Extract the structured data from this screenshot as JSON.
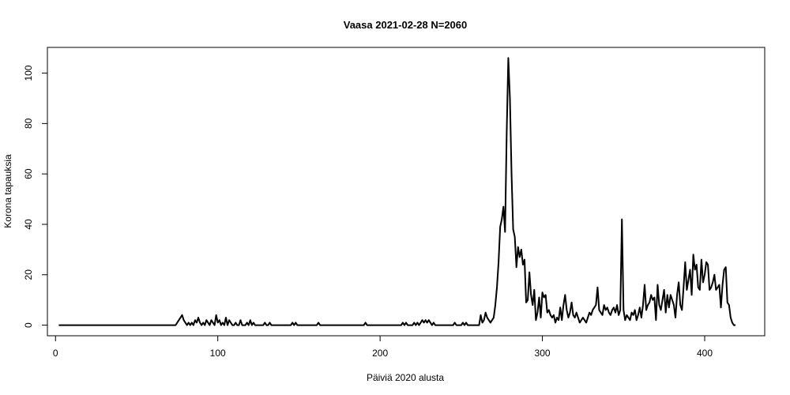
{
  "chart_data": {
    "type": "line",
    "title": "Vaasa 2021-02-28 N=2060",
    "xlabel": "Päiviä 2020 alusta",
    "ylabel": "Korona tapauksia",
    "xlim": [
      -5,
      437
    ],
    "ylim": [
      -4.2,
      110.2
    ],
    "x_ticks": [
      0,
      100,
      200,
      300,
      400
    ],
    "y_ticks": [
      0,
      20,
      40,
      60,
      80,
      100
    ],
    "grid": false,
    "legend": "none",
    "line_color": "#000000",
    "series": [
      {
        "points": [
          [
            2,
            0
          ],
          [
            10,
            0
          ],
          [
            20,
            0
          ],
          [
            30,
            0
          ],
          [
            40,
            0
          ],
          [
            50,
            0
          ],
          [
            60,
            0
          ],
          [
            70,
            0
          ],
          [
            74,
            0
          ],
          [
            75,
            1
          ],
          [
            76,
            2
          ],
          [
            77,
            3
          ],
          [
            78,
            4
          ],
          [
            79,
            2
          ],
          [
            80,
            1
          ],
          [
            81,
            0
          ],
          [
            82,
            1
          ],
          [
            83,
            0
          ],
          [
            84,
            1
          ],
          [
            85,
            0
          ],
          [
            86,
            2
          ],
          [
            87,
            1
          ],
          [
            88,
            3
          ],
          [
            89,
            1
          ],
          [
            90,
            0
          ],
          [
            91,
            1
          ],
          [
            92,
            0
          ],
          [
            93,
            2
          ],
          [
            94,
            1
          ],
          [
            95,
            0
          ],
          [
            96,
            2
          ],
          [
            97,
            1
          ],
          [
            98,
            0
          ],
          [
            99,
            4
          ],
          [
            100,
            1
          ],
          [
            101,
            2
          ],
          [
            102,
            0
          ],
          [
            103,
            1
          ],
          [
            104,
            0
          ],
          [
            105,
            3
          ],
          [
            106,
            0
          ],
          [
            107,
            2
          ],
          [
            108,
            1
          ],
          [
            109,
            0
          ],
          [
            110,
            0
          ],
          [
            111,
            1
          ],
          [
            112,
            0
          ],
          [
            113,
            0
          ],
          [
            114,
            2
          ],
          [
            115,
            0
          ],
          [
            116,
            0
          ],
          [
            117,
            0
          ],
          [
            118,
            1
          ],
          [
            119,
            0
          ],
          [
            120,
            2
          ],
          [
            121,
            0
          ],
          [
            122,
            1
          ],
          [
            123,
            0
          ],
          [
            124,
            0
          ],
          [
            128,
            0
          ],
          [
            129,
            1
          ],
          [
            130,
            0
          ],
          [
            131,
            0
          ],
          [
            132,
            1
          ],
          [
            133,
            0
          ],
          [
            135,
            0
          ],
          [
            145,
            0
          ],
          [
            146,
            1
          ],
          [
            147,
            0
          ],
          [
            148,
            1
          ],
          [
            149,
            0
          ],
          [
            155,
            0
          ],
          [
            161,
            0
          ],
          [
            162,
            1
          ],
          [
            163,
            0
          ],
          [
            170,
            0
          ],
          [
            180,
            0
          ],
          [
            190,
            0
          ],
          [
            191,
            1
          ],
          [
            192,
            0
          ],
          [
            200,
            0
          ],
          [
            210,
            0
          ],
          [
            213,
            0
          ],
          [
            214,
            1
          ],
          [
            215,
            0
          ],
          [
            216,
            1
          ],
          [
            217,
            0
          ],
          [
            220,
            0
          ],
          [
            221,
            1
          ],
          [
            222,
            0
          ],
          [
            223,
            1
          ],
          [
            224,
            0
          ],
          [
            225,
            1
          ],
          [
            226,
            2
          ],
          [
            227,
            1
          ],
          [
            228,
            2
          ],
          [
            229,
            1
          ],
          [
            230,
            2
          ],
          [
            231,
            1
          ],
          [
            232,
            0
          ],
          [
            233,
            1
          ],
          [
            234,
            0
          ],
          [
            240,
            0
          ],
          [
            245,
            0
          ],
          [
            246,
            1
          ],
          [
            247,
            0
          ],
          [
            250,
            0
          ],
          [
            251,
            1
          ],
          [
            252,
            0
          ],
          [
            253,
            1
          ],
          [
            254,
            0
          ],
          [
            260,
            0
          ],
          [
            261,
            0
          ],
          [
            262,
            4
          ],
          [
            263,
            1
          ],
          [
            264,
            2
          ],
          [
            265,
            5
          ],
          [
            266,
            3
          ],
          [
            267,
            2
          ],
          [
            268,
            1
          ],
          [
            269,
            2
          ],
          [
            270,
            3
          ],
          [
            271,
            8
          ],
          [
            272,
            15
          ],
          [
            273,
            25
          ],
          [
            274,
            39
          ],
          [
            275,
            42
          ],
          [
            276,
            47
          ],
          [
            277,
            37
          ],
          [
            278,
            76
          ],
          [
            279,
            106
          ],
          [
            280,
            90
          ],
          [
            281,
            60
          ],
          [
            282,
            38
          ],
          [
            283,
            35
          ],
          [
            284,
            23
          ],
          [
            285,
            31
          ],
          [
            286,
            27
          ],
          [
            287,
            30
          ],
          [
            288,
            24
          ],
          [
            289,
            26
          ],
          [
            290,
            9
          ],
          [
            291,
            10
          ],
          [
            292,
            21
          ],
          [
            293,
            12
          ],
          [
            294,
            8
          ],
          [
            295,
            14
          ],
          [
            296,
            2
          ],
          [
            297,
            5
          ],
          [
            298,
            11
          ],
          [
            299,
            3
          ],
          [
            300,
            13
          ],
          [
            301,
            11
          ],
          [
            302,
            12
          ],
          [
            303,
            5
          ],
          [
            304,
            6
          ],
          [
            305,
            4
          ],
          [
            306,
            3
          ],
          [
            307,
            4
          ],
          [
            308,
            1
          ],
          [
            309,
            3
          ],
          [
            310,
            2
          ],
          [
            311,
            7
          ],
          [
            312,
            2
          ],
          [
            313,
            8
          ],
          [
            314,
            12
          ],
          [
            315,
            6
          ],
          [
            316,
            3
          ],
          [
            317,
            5
          ],
          [
            318,
            9
          ],
          [
            319,
            4
          ],
          [
            320,
            3
          ],
          [
            321,
            5
          ],
          [
            322,
            3
          ],
          [
            323,
            1
          ],
          [
            324,
            2
          ],
          [
            325,
            3
          ],
          [
            326,
            2
          ],
          [
            327,
            1
          ],
          [
            328,
            3
          ],
          [
            329,
            5
          ],
          [
            330,
            4
          ],
          [
            331,
            6
          ],
          [
            332,
            7
          ],
          [
            333,
            8
          ],
          [
            334,
            15
          ],
          [
            335,
            6
          ],
          [
            336,
            5
          ],
          [
            337,
            4
          ],
          [
            338,
            8
          ],
          [
            339,
            6
          ],
          [
            340,
            7
          ],
          [
            341,
            5
          ],
          [
            342,
            4
          ],
          [
            343,
            6
          ],
          [
            344,
            7
          ],
          [
            345,
            5
          ],
          [
            346,
            8
          ],
          [
            347,
            4
          ],
          [
            348,
            6
          ],
          [
            349,
            42
          ],
          [
            350,
            6
          ],
          [
            351,
            2
          ],
          [
            352,
            4
          ],
          [
            353,
            3
          ],
          [
            354,
            2
          ],
          [
            355,
            5
          ],
          [
            356,
            4
          ],
          [
            357,
            6
          ],
          [
            358,
            2
          ],
          [
            359,
            4
          ],
          [
            360,
            7
          ],
          [
            361,
            3
          ],
          [
            362,
            8
          ],
          [
            363,
            16
          ],
          [
            364,
            6
          ],
          [
            365,
            8
          ],
          [
            366,
            9
          ],
          [
            367,
            12
          ],
          [
            368,
            10
          ],
          [
            369,
            11
          ],
          [
            370,
            2
          ],
          [
            371,
            16
          ],
          [
            372,
            8
          ],
          [
            373,
            6
          ],
          [
            374,
            10
          ],
          [
            375,
            14
          ],
          [
            376,
            5
          ],
          [
            377,
            12
          ],
          [
            378,
            7
          ],
          [
            379,
            12
          ],
          [
            380,
            10
          ],
          [
            381,
            8
          ],
          [
            382,
            3
          ],
          [
            383,
            12
          ],
          [
            384,
            17
          ],
          [
            385,
            8
          ],
          [
            386,
            6
          ],
          [
            387,
            15
          ],
          [
            388,
            25
          ],
          [
            389,
            14
          ],
          [
            390,
            18
          ],
          [
            391,
            22
          ],
          [
            392,
            12
          ],
          [
            393,
            28
          ],
          [
            394,
            22
          ],
          [
            395,
            24
          ],
          [
            396,
            15
          ],
          [
            397,
            14
          ],
          [
            398,
            26
          ],
          [
            399,
            17
          ],
          [
            400,
            20
          ],
          [
            401,
            25
          ],
          [
            402,
            24
          ],
          [
            403,
            14
          ],
          [
            404,
            15
          ],
          [
            405,
            17
          ],
          [
            406,
            20
          ],
          [
            407,
            14
          ],
          [
            408,
            15
          ],
          [
            409,
            16
          ],
          [
            410,
            7
          ],
          [
            411,
            16
          ],
          [
            412,
            22
          ],
          [
            413,
            23
          ],
          [
            414,
            9
          ],
          [
            415,
            8
          ],
          [
            416,
            3
          ],
          [
            417,
            1
          ],
          [
            418,
            0
          ],
          [
            419,
            0
          ]
        ]
      }
    ]
  }
}
